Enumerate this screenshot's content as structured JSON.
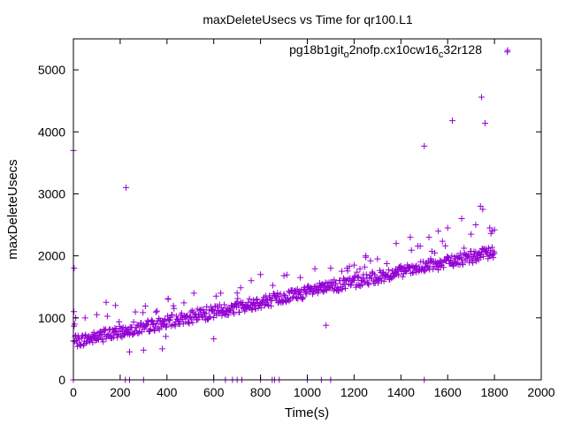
{
  "chart_data": {
    "type": "scatter",
    "title": "maxDeleteUsecs vs Time for qr100.L1",
    "xlabel": "Time(s)",
    "ylabel": "maxDeleteUsecs",
    "xlim": [
      0,
      2000
    ],
    "ylim": [
      0,
      5500
    ],
    "x_ticks": [
      0,
      200,
      400,
      600,
      800,
      1000,
      1200,
      1400,
      1600,
      1800,
      2000
    ],
    "y_ticks": [
      0,
      1000,
      2000,
      3000,
      4000,
      5000
    ],
    "grid": false,
    "legend_position": "top-right",
    "marker": "plus",
    "color": "#9400d3",
    "series": [
      {
        "name": "pg18b1git_o2nofp.cx10cw16_c32r128",
        "name_parts": [
          {
            "text": "pg18b1git",
            "sub": false
          },
          {
            "text": "o",
            "sub": true
          },
          {
            "text": "2nofp.cx10cw16",
            "sub": false
          },
          {
            "text": "c",
            "sub": true
          },
          {
            "text": "32r128",
            "sub": false
          }
        ],
        "trend": {
          "x_start": 0,
          "y_start": 600,
          "x_end": 1800,
          "y_end": 2050,
          "x_step": 2.5,
          "noise": 180,
          "seed": 7
        },
        "points": [
          [
            0,
            3700
          ],
          [
            3,
            1800
          ],
          [
            2,
            1100
          ],
          [
            5,
            900
          ],
          [
            10,
            1000
          ],
          [
            50,
            1000
          ],
          [
            100,
            1050
          ],
          [
            140,
            1250
          ],
          [
            180,
            1200
          ],
          [
            225,
            3100
          ],
          [
            240,
            450
          ],
          [
            300,
            480
          ],
          [
            380,
            500
          ],
          [
            395,
            700
          ],
          [
            405,
            1300
          ],
          [
            600,
            660
          ],
          [
            610,
            1350
          ],
          [
            700,
            1400
          ],
          [
            760,
            1600
          ],
          [
            800,
            1700
          ],
          [
            900,
            1680
          ],
          [
            970,
            1650
          ],
          [
            1080,
            880
          ],
          [
            1100,
            1800
          ],
          [
            1200,
            1850
          ],
          [
            1250,
            2000
          ],
          [
            1300,
            1950
          ],
          [
            1380,
            2200
          ],
          [
            1440,
            2300
          ],
          [
            1500,
            3770
          ],
          [
            1520,
            2300
          ],
          [
            1560,
            2400
          ],
          [
            1600,
            2450
          ],
          [
            1620,
            4180
          ],
          [
            1660,
            2600
          ],
          [
            1700,
            2350
          ],
          [
            1720,
            2500
          ],
          [
            1745,
            4560
          ],
          [
            1740,
            2800
          ],
          [
            1750,
            2750
          ],
          [
            1760,
            4140
          ],
          [
            1780,
            2450
          ],
          [
            1790,
            2400
          ],
          [
            1800,
            2420
          ],
          [
            1855,
            5290
          ],
          [
            0,
            0
          ],
          [
            222,
            0
          ],
          [
            240,
            0
          ],
          [
            300,
            0
          ],
          [
            600,
            0
          ],
          [
            650,
            0
          ],
          [
            680,
            0
          ],
          [
            700,
            0
          ],
          [
            720,
            0
          ],
          [
            800,
            0
          ],
          [
            850,
            0
          ],
          [
            860,
            0
          ],
          [
            880,
            0
          ],
          [
            1000,
            0
          ],
          [
            1060,
            0
          ],
          [
            1100,
            0
          ],
          [
            1500,
            0
          ]
        ]
      }
    ]
  }
}
